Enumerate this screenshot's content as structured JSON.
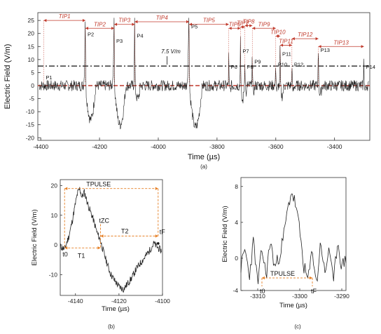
{
  "chart_data": [
    {
      "panel": "a",
      "type": "line",
      "caption": "(a)",
      "xlabel": "Time (µs)",
      "ylabel": "Electric Field (V/m)",
      "xlim": [
        -4410,
        -3280
      ],
      "ylim": [
        -21,
        28
      ],
      "xticks": [
        -4400,
        -4200,
        -4000,
        -3800,
        -3600,
        -3400
      ],
      "yticks": [
        -20,
        -15,
        -10,
        -5,
        0,
        5,
        10,
        15,
        20,
        25
      ],
      "threshold_label": "7.5 V/m",
      "threshold_value": 7.5,
      "zero_line": 0,
      "peaks": [
        {
          "label": "P1",
          "x": -4390,
          "y": 1.5
        },
        {
          "label": "P2",
          "x": -4248,
          "y": 19.5
        },
        {
          "label": "P3",
          "x": -4150,
          "y": 17
        },
        {
          "label": "P4",
          "x": -4080,
          "y": 19
        },
        {
          "label": "P5",
          "x": -3895,
          "y": 22.5
        },
        {
          "label": "P6",
          "x": -3760,
          "y": 7
        },
        {
          "label": "P7",
          "x": -3720,
          "y": 13
        },
        {
          "label": "P8",
          "x": -3705,
          "y": 7
        },
        {
          "label": "P9",
          "x": -3680,
          "y": 9
        },
        {
          "label": "P10",
          "x": -3600,
          "y": 8
        },
        {
          "label": "P11",
          "x": -3585,
          "y": 12
        },
        {
          "label": "P12",
          "x": -3545,
          "y": 8
        },
        {
          "label": "P13",
          "x": -3455,
          "y": 13.5
        },
        {
          "label": "P14",
          "x": -3300,
          "y": 7
        }
      ],
      "intervals": [
        {
          "label": "TIP1",
          "x0": -4390,
          "x1": -4248,
          "y": 25
        },
        {
          "label": "TIP2",
          "x0": -4248,
          "x1": -4150,
          "y": 22
        },
        {
          "label": "TIP3",
          "x0": -4150,
          "x1": -4080,
          "y": 23.5
        },
        {
          "label": "TIP4",
          "x0": -4080,
          "x1": -3895,
          "y": 24.5
        },
        {
          "label": "TIP5",
          "x0": -3895,
          "x1": -3760,
          "y": 23.5
        },
        {
          "label": "TIP6",
          "x0": -3760,
          "x1": -3720,
          "y": 22
        },
        {
          "label": "TIP7",
          "x0": -3720,
          "x1": -3705,
          "y": 22.5
        },
        {
          "label": "TIP8",
          "x0": -3705,
          "x1": -3680,
          "y": 23
        },
        {
          "label": "TIP9",
          "x0": -3680,
          "x1": -3600,
          "y": 22
        },
        {
          "label": "TIP10",
          "x0": -3600,
          "x1": -3585,
          "y": 19
        },
        {
          "label": "TIP11",
          "x0": -3585,
          "x1": -3545,
          "y": 15.5
        },
        {
          "label": "TIP12",
          "x0": -3545,
          "x1": -3455,
          "y": 18
        },
        {
          "label": "TIP13",
          "x0": -3455,
          "x1": -3300,
          "y": 15
        }
      ],
      "waveform_events": [
        {
          "t": -4248,
          "peak": 19.5,
          "neg": -13,
          "width": 22
        },
        {
          "t": -4150,
          "peak": 17,
          "neg": -15,
          "width": 25
        },
        {
          "t": -4080,
          "peak": 19,
          "neg": -5,
          "width": 12
        },
        {
          "t": -3895,
          "peak": 22.5,
          "neg": -16,
          "width": 28
        },
        {
          "t": -3760,
          "peak": 7,
          "neg": -2,
          "width": 5
        },
        {
          "t": -3720,
          "peak": 13,
          "neg": -6,
          "width": 8
        },
        {
          "t": -3705,
          "peak": 7,
          "neg": -3,
          "width": 5
        },
        {
          "t": -3680,
          "peak": 9,
          "neg": -2,
          "width": 6
        },
        {
          "t": -3600,
          "peak": 8,
          "neg": -2,
          "width": 5
        },
        {
          "t": -3585,
          "peak": 12,
          "neg": -4,
          "width": 8
        },
        {
          "t": -3545,
          "peak": 8,
          "neg": -2,
          "width": 5
        },
        {
          "t": -3455,
          "peak": 13.5,
          "neg": -3,
          "width": 8
        },
        {
          "t": -3300,
          "peak": 7,
          "neg": -2,
          "width": 5
        }
      ],
      "colors": {
        "trace": "#222222",
        "annotation": "#c0392b",
        "threshold": "#111111",
        "zero": "#c0392b"
      }
    },
    {
      "panel": "b",
      "type": "line",
      "caption": "(b)",
      "xlabel": "Time (µs)",
      "ylabel": "Electric Field (V/m)",
      "xlim": [
        -4147,
        -4100
      ],
      "ylim": [
        -17,
        22
      ],
      "xticks": [
        -4140,
        -4120,
        -4100
      ],
      "yticks": [
        -10,
        0,
        10,
        20
      ],
      "waveform": {
        "x": [
          -4147,
          -4145,
          -4143,
          -4141.5,
          -4140,
          -4139,
          -4138,
          -4137,
          -4136,
          -4134,
          -4132,
          -4130,
          -4128.5,
          -4128,
          -4126,
          -4124,
          -4122,
          -4120,
          -4118,
          -4116,
          -4114,
          -4112,
          -4110,
          -4108,
          -4106,
          -4104,
          -4102,
          -4100.5
        ],
        "y": [
          -0.5,
          -1.5,
          3,
          8,
          14,
          17.5,
          19,
          16,
          18,
          13,
          9,
          4,
          1.5,
          0,
          -5,
          -9.5,
          -12,
          -14,
          -15,
          -13,
          -11,
          -8,
          -6,
          -4,
          -2,
          0.5,
          -1,
          -2
        ]
      },
      "labels": {
        "pulse": "TPULSE",
        "t0": "t0",
        "tzc": "tZC",
        "tf": "tF",
        "t1": "T1",
        "t2": "T2"
      },
      "markers": {
        "t0": -4145,
        "tzc": -4128.5,
        "tf": -4102,
        "pulse_level": 19,
        "t1_level": -1,
        "t2_level": 3
      },
      "colors": {
        "trace": "#222222",
        "annotation": "#e67e22"
      }
    },
    {
      "panel": "c",
      "type": "line",
      "caption": "(c)",
      "xlabel": "Time (µs)",
      "ylabel": "Electric Field (V/m)",
      "xlim": [
        -3314,
        -3289
      ],
      "ylim": [
        -3.6,
        9
      ],
      "xticks": [
        -3310,
        -3300,
        -3290
      ],
      "yticks": [
        -4,
        0,
        4,
        8
      ],
      "waveform": {
        "x": [
          -3314,
          -3313,
          -3312,
          -3311,
          -3310,
          -3309,
          -3308,
          -3307,
          -3306,
          -3305,
          -3304,
          -3303,
          -3302,
          -3301,
          -3300,
          -3299,
          -3298,
          -3297,
          -3296,
          -3295,
          -3294,
          -3293,
          -3292,
          -3291,
          -3290,
          -3289
        ],
        "y": [
          -1,
          1,
          -2,
          2,
          -3,
          1,
          -2,
          2,
          -1,
          0,
          2,
          5,
          7.5,
          6,
          3,
          -1,
          -2.5,
          1,
          -3,
          2,
          -2,
          1.5,
          -3,
          2,
          -1,
          0
        ]
      },
      "labels": {
        "pulse": "TPULSE",
        "t0": "t0",
        "tf": "tF"
      },
      "markers": {
        "t0": -3309,
        "tf": -3297,
        "pulse_level": -2.2
      },
      "colors": {
        "trace": "#222222",
        "annotation": "#e67e22"
      }
    }
  ]
}
